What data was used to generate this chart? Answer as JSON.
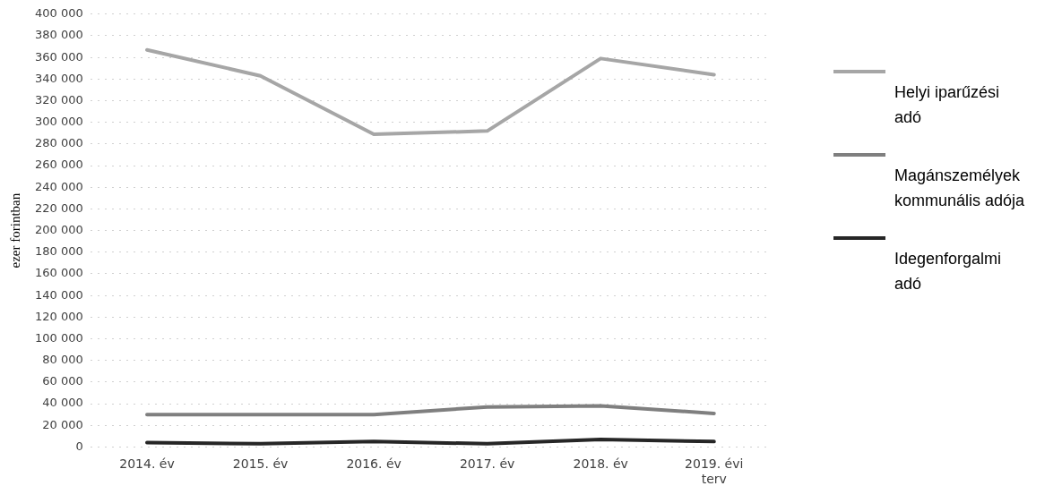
{
  "chart_data": {
    "type": "line",
    "ylabel": "ezer forintban",
    "categories": [
      "2014. év",
      "2015. év",
      "2016. év",
      "2017. év",
      "2018. év",
      "2019. évi terv"
    ],
    "series": [
      {
        "name": "Helyi iparűzési adó",
        "color": "#a6a6a6",
        "values": [
          367000,
          343000,
          289000,
          292000,
          359000,
          344000
        ]
      },
      {
        "name": "Magánszemélyek kommunális adója",
        "color": "#7f7f7f",
        "values": [
          30000,
          30000,
          30000,
          37000,
          38000,
          31000
        ]
      },
      {
        "name": "Idegenforgalmi adó",
        "color": "#262626",
        "values": [
          4000,
          3000,
          5000,
          3000,
          7000,
          5000
        ]
      }
    ],
    "ylim": [
      0,
      400000
    ],
    "yticks": [
      0,
      20000,
      40000,
      60000,
      80000,
      100000,
      120000,
      140000,
      160000,
      180000,
      200000,
      220000,
      240000,
      260000,
      280000,
      300000,
      320000,
      340000,
      360000,
      380000,
      400000
    ],
    "grid": "y",
    "legend": "right",
    "marker": "none",
    "line_style": "solid"
  }
}
